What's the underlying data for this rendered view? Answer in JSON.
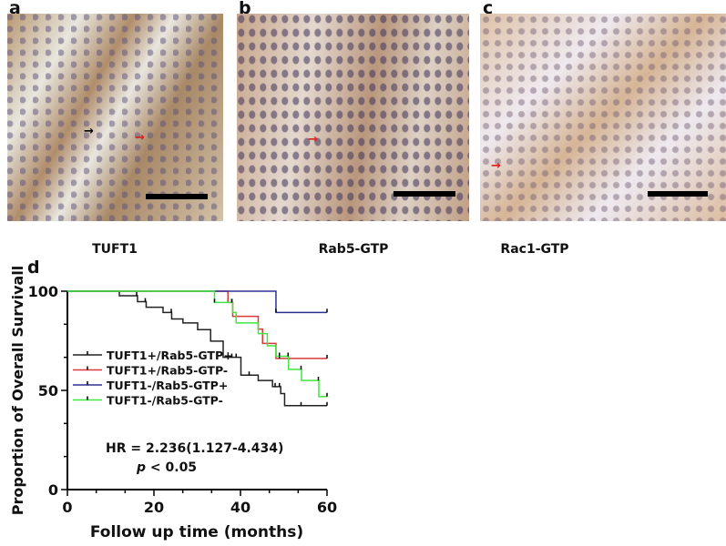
{
  "panels": [
    {
      "letter": "a",
      "caption": "TUFT1"
    },
    {
      "letter": "b",
      "caption": "Rab5-GTP"
    },
    {
      "letter": "c",
      "caption": "Rac1-GTP"
    }
  ],
  "chart_letter": "d",
  "chart_data": {
    "type": "line",
    "subtype": "kaplan-meier step",
    "xlabel": "Follow up time (months)",
    "ylabel": "Proportion of Overall Survivall",
    "xlim": [
      0,
      60
    ],
    "ylim": [
      0,
      100
    ],
    "xticks": [
      "0",
      "20",
      "40",
      "60"
    ],
    "yticks": [
      "0",
      "50",
      "100"
    ],
    "grid": false,
    "legend_position": "left-middle",
    "annotations": {
      "hr": "HR = 2.236(1.127-4.434)",
      "p_symbol": "p",
      "p_rest": " < 0.05"
    },
    "series": [
      {
        "name": "TUFT1+/Rab5-GTP+",
        "color": "#222222",
        "steps": [
          [
            0,
            100
          ],
          [
            12,
            97.7
          ],
          [
            16.2,
            94.7
          ],
          [
            18.2,
            91.9
          ],
          [
            22.1,
            89.3
          ],
          [
            24.1,
            86
          ],
          [
            26.7,
            84
          ],
          [
            30.1,
            80.6
          ],
          [
            33.1,
            74.8
          ],
          [
            36,
            66.7
          ],
          [
            40.1,
            57.7
          ],
          [
            44.1,
            55
          ],
          [
            47.4,
            51.9
          ],
          [
            49.3,
            48.4
          ],
          [
            50.2,
            42.3
          ]
        ],
        "censored": [
          16,
          18,
          24,
          38,
          39,
          42,
          48,
          49,
          54,
          60
        ]
      },
      {
        "name": "TUFT1+/Rab5-GTP-",
        "color": "#d9393c",
        "steps": [
          [
            0,
            100
          ],
          [
            37.1,
            94.3
          ],
          [
            38.2,
            87.3
          ],
          [
            44.1,
            80.9
          ],
          [
            45.1,
            73.7
          ],
          [
            48.2,
            66.1
          ]
        ],
        "censored": [
          38,
          49,
          60
        ]
      },
      {
        "name": "TUFT1-/Rab5-GTP+",
        "color": "#2e3192",
        "steps": [
          [
            0,
            100
          ],
          [
            48.2,
            89.3
          ]
        ],
        "censored": [
          48.2,
          60
        ]
      },
      {
        "name": "TUFT1-/Rab5-GTP-",
        "color": "#3ee83e",
        "steps": [
          [
            0,
            100
          ],
          [
            34,
            94.3
          ],
          [
            38.2,
            89.3
          ],
          [
            39,
            84
          ],
          [
            44.1,
            78.6
          ],
          [
            46.2,
            72.5
          ],
          [
            48.2,
            67.2
          ],
          [
            51.1,
            60.6
          ],
          [
            54.1,
            55
          ],
          [
            58.1,
            46.9
          ]
        ],
        "censored": [
          34,
          38,
          49,
          51,
          54,
          58,
          60
        ]
      }
    ]
  }
}
